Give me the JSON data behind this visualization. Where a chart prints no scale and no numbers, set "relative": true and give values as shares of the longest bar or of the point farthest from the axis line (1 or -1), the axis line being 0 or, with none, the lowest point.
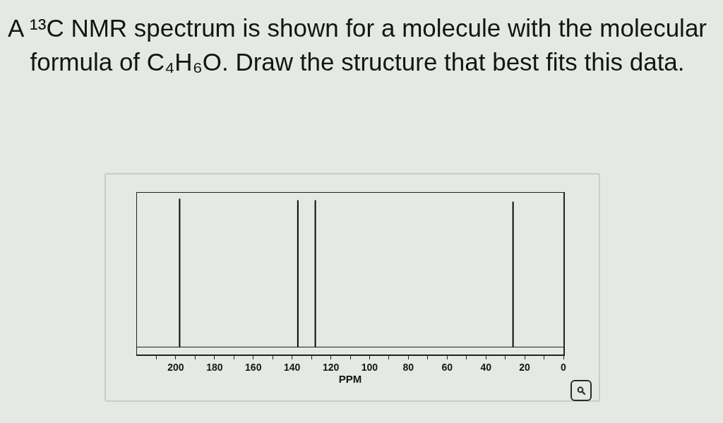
{
  "chart_data": {
    "type": "bar",
    "title": "A ¹³C NMR spectrum is shown for a molecule with the molecular formula of C₄H₆O. Draw the structure that best fits this data.",
    "xlabel": "PPM",
    "x": [
      198,
      137,
      128,
      26
    ],
    "values": [
      1,
      0.99,
      0.99,
      0.98
    ],
    "relative": true,
    "color": "#000000",
    "xlim": [
      220,
      0
    ],
    "xticks": [
      {
        "value": 210,
        "label": null
      },
      200,
      {
        "value": 190,
        "label": null
      },
      180,
      {
        "value": 170,
        "label": null
      },
      160,
      {
        "value": 150,
        "label": null
      },
      140,
      {
        "value": 130,
        "label": null
      },
      120,
      {
        "value": 110,
        "label": null
      },
      100,
      {
        "value": 90,
        "label": null
      },
      80,
      {
        "value": 70,
        "label": null
      },
      60,
      {
        "value": 50,
        "label": null
      },
      40,
      {
        "value": 30,
        "label": null
      },
      20,
      {
        "value": 10,
        "label": null
      },
      0
    ]
  }
}
